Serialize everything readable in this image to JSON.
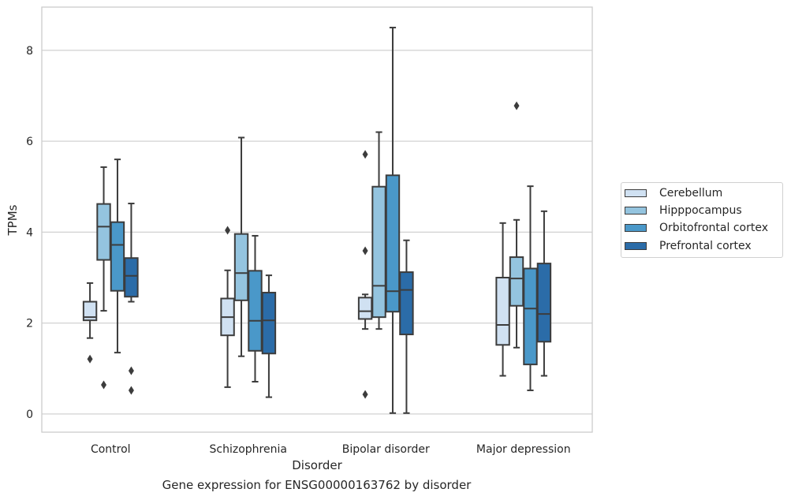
{
  "chart_data": {
    "type": "boxplot",
    "title": "",
    "caption": "Gene expression for ENSG00000163762 by disorder",
    "xlabel": "Disorder",
    "ylabel": "TPMs",
    "ylim": [
      -0.4,
      8.95
    ],
    "yticks": [
      0,
      2,
      4,
      6,
      8
    ],
    "grid": "horizontal",
    "legend_position": "center-right",
    "categories": [
      "Control",
      "Schizophrenia",
      "Bipolar disorder",
      "Major depression"
    ],
    "series": [
      {
        "name": "Cerebellum",
        "color": "#d0e1f2",
        "boxes": [
          {
            "whislo": 1.67,
            "q1": 2.06,
            "med": 2.13,
            "q3": 2.47,
            "whishi": 2.88,
            "fliers": [
              1.21
            ]
          },
          {
            "whislo": 0.59,
            "q1": 1.73,
            "med": 2.13,
            "q3": 2.54,
            "whishi": 3.16,
            "fliers": [
              4.04
            ]
          },
          {
            "whislo": 1.87,
            "q1": 2.09,
            "med": 2.26,
            "q3": 2.56,
            "whishi": 2.63,
            "fliers": [
              5.71,
              3.59,
              0.43
            ]
          },
          {
            "whislo": 0.84,
            "q1": 1.52,
            "med": 1.96,
            "q3": 3.0,
            "whishi": 4.2,
            "fliers": []
          }
        ]
      },
      {
        "name": "Hipppocampus",
        "color": "#94c4df",
        "boxes": [
          {
            "whislo": 2.27,
            "q1": 3.39,
            "med": 4.12,
            "q3": 4.62,
            "whishi": 5.43,
            "fliers": [
              0.64
            ]
          },
          {
            "whislo": 1.27,
            "q1": 2.5,
            "med": 3.1,
            "q3": 3.96,
            "whishi": 6.08,
            "fliers": []
          },
          {
            "whislo": 1.87,
            "q1": 2.13,
            "med": 2.82,
            "q3": 5.0,
            "whishi": 6.2,
            "fliers": []
          },
          {
            "whislo": 1.46,
            "q1": 2.38,
            "med": 2.98,
            "q3": 3.45,
            "whishi": 4.27,
            "fliers": [
              6.78
            ]
          }
        ]
      },
      {
        "name": "Orbitofrontal cortex",
        "color": "#4a98c9",
        "boxes": [
          {
            "whislo": 1.35,
            "q1": 2.71,
            "med": 3.72,
            "q3": 4.22,
            "whishi": 5.6,
            "fliers": []
          },
          {
            "whislo": 0.71,
            "q1": 1.39,
            "med": 2.05,
            "q3": 3.15,
            "whishi": 3.92,
            "fliers": []
          },
          {
            "whislo": 0.02,
            "q1": 2.25,
            "med": 2.7,
            "q3": 5.25,
            "whishi": 8.5,
            "fliers": []
          },
          {
            "whislo": 0.52,
            "q1": 1.09,
            "med": 2.32,
            "q3": 3.2,
            "whishi": 5.01,
            "fliers": []
          }
        ]
      },
      {
        "name": "Prefrontal cortex",
        "color": "#2b6ca8",
        "boxes": [
          {
            "whislo": 2.47,
            "q1": 2.58,
            "med": 3.04,
            "q3": 3.43,
            "whishi": 4.63,
            "fliers": [
              0.95,
              0.52
            ]
          },
          {
            "whislo": 0.37,
            "q1": 1.33,
            "med": 2.06,
            "q3": 2.67,
            "whishi": 3.05,
            "fliers": []
          },
          {
            "whislo": 0.02,
            "q1": 1.75,
            "med": 2.73,
            "q3": 3.12,
            "whishi": 3.82,
            "fliers": []
          },
          {
            "whislo": 0.84,
            "q1": 1.59,
            "med": 2.2,
            "q3": 3.31,
            "whishi": 4.46,
            "fliers": []
          }
        ]
      }
    ]
  }
}
